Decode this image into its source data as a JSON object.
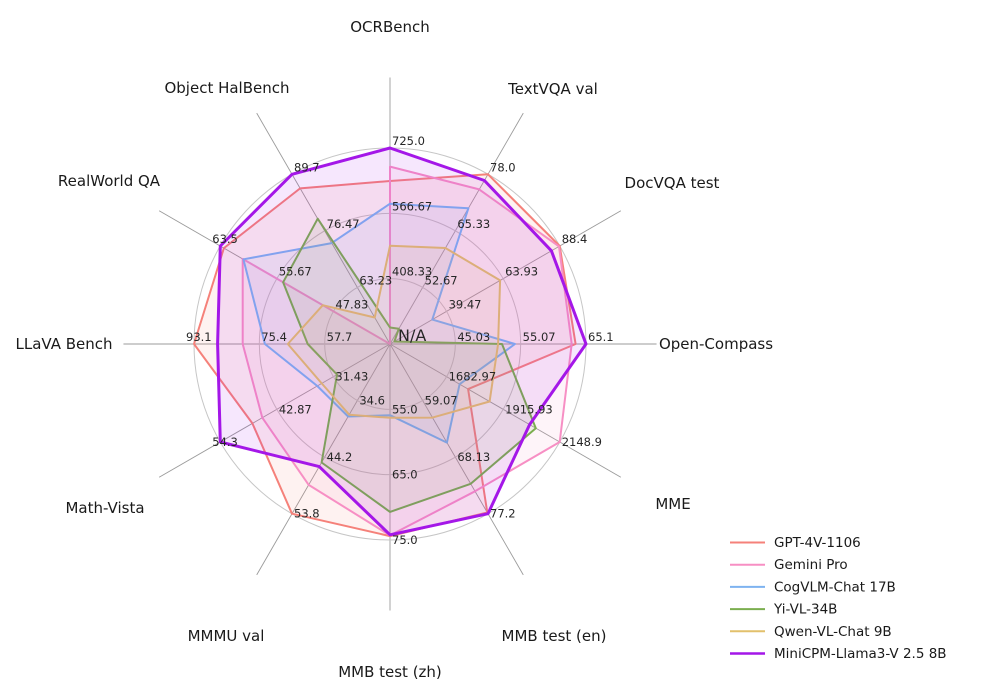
{
  "chart_data": {
    "type": "radar",
    "center_label": "N/A",
    "grid": {
      "rings": 3,
      "ring_color": "#c6c6c6",
      "spoke_color": "#9b9b9b"
    },
    "legend_position": "lower right",
    "axes": [
      {
        "label": "OCRBench",
        "min": 250,
        "max": 725,
        "ticks": [
          "408.33",
          "566.67",
          "725.0"
        ]
      },
      {
        "label": "TextVQA val",
        "min": 40,
        "max": 78.0,
        "ticks": [
          "52.67",
          "65.33",
          "78.0"
        ]
      },
      {
        "label": "DocVQA test",
        "min": 15,
        "max": 88.4,
        "ticks": [
          "39.47",
          "63.93",
          "88.4"
        ]
      },
      {
        "label": "Open-Compass",
        "min": 35,
        "max": 65.1,
        "ticks": [
          "45.03",
          "55.07",
          "65.1"
        ]
      },
      {
        "label": "MME",
        "min": 1450,
        "max": 2148.9,
        "ticks": [
          "1682.97",
          "1915.93",
          "2148.9"
        ]
      },
      {
        "label": "MMB test (en)",
        "min": 50,
        "max": 77.2,
        "ticks": [
          "59.07",
          "68.13",
          "77.2"
        ]
      },
      {
        "label": "MMB test (zh)",
        "min": 45,
        "max": 75.0,
        "ticks": [
          "55.0",
          "65.0",
          "75.0"
        ]
      },
      {
        "label": "MMMU val",
        "min": 25,
        "max": 53.8,
        "ticks": [
          "34.6",
          "44.2",
          "53.8"
        ]
      },
      {
        "label": "Math-Vista",
        "min": 20,
        "max": 54.3,
        "ticks": [
          "31.43",
          "42.87",
          "54.3"
        ]
      },
      {
        "label": "LLaVA Bench",
        "min": 40,
        "max": 93.1,
        "ticks": [
          "57.7",
          "75.4",
          "93.1"
        ]
      },
      {
        "label": "RealWorld QA",
        "min": 40,
        "max": 63.5,
        "ticks": [
          "47.83",
          "55.67",
          "63.5"
        ]
      },
      {
        "label": "Object HalBench",
        "min": 50,
        "max": 89.7,
        "ticks": [
          "63.23",
          "76.47",
          "89.7"
        ]
      }
    ],
    "series": [
      {
        "name": "GPT-4V-1106",
        "color": "#F5817A",
        "line_width": 2,
        "values": [
          645,
          78.0,
          88.4,
          63.5,
          1771.5,
          77.0,
          74.4,
          53.8,
          47.8,
          93.1,
          63.0,
          86.4
        ]
      },
      {
        "name": "Gemini Pro",
        "color": "#F78FC4",
        "line_width": 2,
        "values": [
          680,
          74.6,
          88.1,
          62.9,
          2148.9,
          73.6,
          74.3,
          48.9,
          45.8,
          79.9,
          60.4,
          null
        ]
      },
      {
        "name": "CogVLM-Chat 17B",
        "color": "#7EB3F0",
        "line_width": 2,
        "values": [
          590,
          70.4,
          33.3,
          54.2,
          1736.6,
          65.8,
          55.9,
          37.3,
          34.7,
          73.9,
          60.3,
          73.6
        ]
      },
      {
        "name": "Yi-VL-34B",
        "color": "#7BAE4F",
        "line_width": 2,
        "values": [
          290,
          43.4,
          16.9,
          52.2,
          2050.2,
          72.4,
          70.7,
          45.1,
          30.7,
          62.3,
          54.8,
          79.3
        ]
      },
      {
        "name": "Qwen-VL-Chat 9B",
        "color": "#E2C06C",
        "line_width": 2,
        "values": [
          488,
          61.5,
          62.6,
          51.6,
          1860.0,
          61.8,
          56.3,
          37.0,
          33.8,
          67.7,
          49.3,
          56.2
        ]
      },
      {
        "name": "MiniCPM-Llama3-V 2.5 8B",
        "color": "#A417E8",
        "line_width": 3,
        "values": [
          725,
          76.6,
          84.8,
          65.1,
          2024.6,
          77.2,
          74.2,
          45.8,
          54.3,
          86.7,
          63.5,
          89.7
        ]
      }
    ]
  }
}
